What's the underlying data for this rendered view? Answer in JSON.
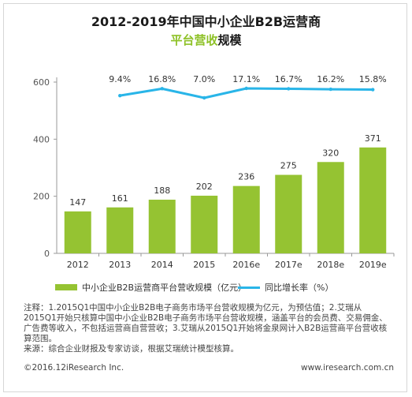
{
  "header": {
    "title": "2012-2019年中国中小企业B2B运营商",
    "subtitle_highlight": "平台营收",
    "subtitle_rest": "规模"
  },
  "chart_data": {
    "type": "bar",
    "categories": [
      "2012",
      "2013",
      "2014",
      "2015",
      "2016e",
      "2017e",
      "2018e",
      "2019e"
    ],
    "series": [
      {
        "name": "中小企业B2B运营商平台营收规模（亿元）",
        "type": "bar",
        "values": [
          147,
          161,
          188,
          202,
          236,
          275,
          320,
          371
        ],
        "value_labels": [
          "147",
          "161",
          "188",
          "202",
          "236",
          "275",
          "320",
          "371"
        ]
      },
      {
        "name": "同比增长率（%）",
        "type": "line",
        "values": [
          null,
          9.4,
          16.8,
          7.0,
          17.1,
          16.7,
          16.2,
          15.8
        ],
        "value_labels": [
          "",
          "9.4%",
          "16.8%",
          "7.0%",
          "17.1%",
          "16.7%",
          "16.2%",
          "15.8%"
        ]
      }
    ],
    "y_ticks": [
      "0",
      "200",
      "400",
      "600"
    ],
    "ylim": [
      0,
      600
    ],
    "grid": false,
    "legend_position": "bottom"
  },
  "colors": {
    "bar": "#95c332",
    "line": "#29b5e8",
    "highlight": "#8ec127"
  },
  "notes": {
    "line1": "注释：1.2015Q1中国中小企业B2B电子商务市场平台营收规模为亿元，为预估值；2.艾瑞从2015Q1开始只核算中国中小企业B2B电子商务市场平台营收规模，涵盖平台的会员费、交易佣金、广告费等收入，不包括运营商自营营收；3.艾瑞从2015Q1开始将金泉网计入B2B运营商平台营收核算范围。",
    "line2": "来源：综合企业财报及专家访谈，根据艾瑞统计模型核算。"
  },
  "footer": {
    "copyright": "©2016.12iResearch Inc.",
    "website": "www.iresearch.com.cn"
  }
}
